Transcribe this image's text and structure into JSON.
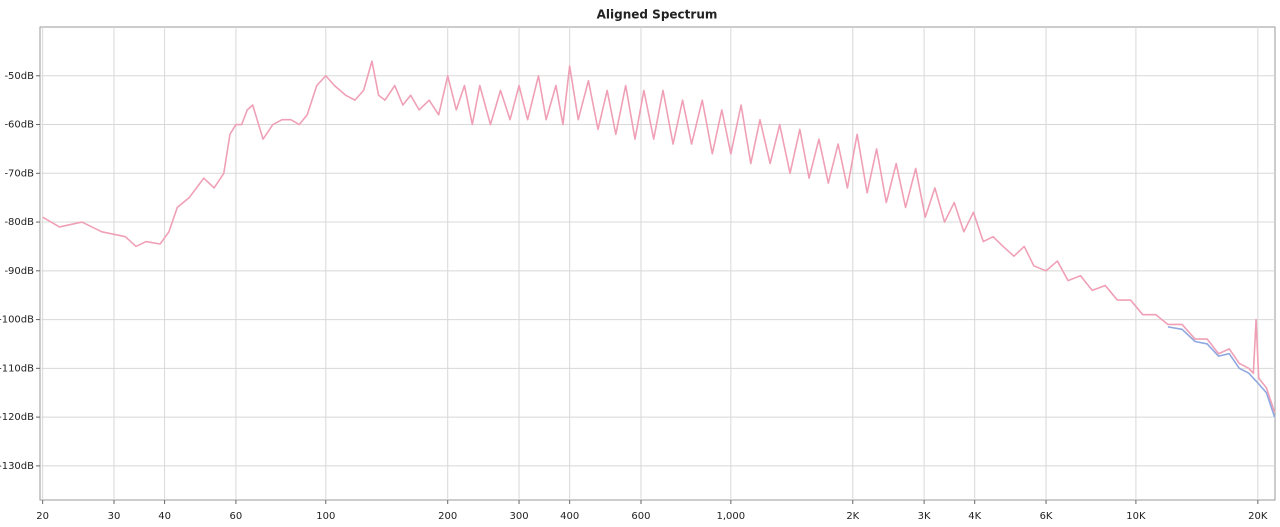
{
  "chart_data": {
    "type": "line",
    "title": "Aligned Spectrum",
    "xscale": "log",
    "grid": true,
    "xlim": [
      19.7,
      22050
    ],
    "ylim": [
      -137,
      -40
    ],
    "xticks": [
      20,
      30,
      40,
      60,
      100,
      200,
      300,
      400,
      600,
      {
        "value": 1000,
        "label": "1,000"
      },
      {
        "value": 2000,
        "label": "2K"
      },
      {
        "value": 3000,
        "label": "3K"
      },
      {
        "value": 4000,
        "label": "4K"
      },
      {
        "value": 6000,
        "label": "6K"
      },
      {
        "value": 10000,
        "label": "10K"
      },
      {
        "value": 20000,
        "label": "20K"
      }
    ],
    "yticks": [
      {
        "value": -50,
        "label": "-50dB"
      },
      {
        "value": -60,
        "label": "-60dB"
      },
      {
        "value": -70,
        "label": "-70dB"
      },
      {
        "value": -80,
        "label": "-80dB"
      },
      {
        "value": -90,
        "label": "-90dB"
      },
      {
        "value": -100,
        "label": "-100dB"
      },
      {
        "value": -110,
        "label": "-110dB"
      },
      {
        "value": -120,
        "label": "-120dB"
      },
      {
        "value": -130,
        "label": "-130dB"
      }
    ],
    "series": [
      {
        "color": "#8fa8df",
        "x": [
          12000,
          13000,
          14000,
          15000,
          16000,
          17000,
          18000,
          19000,
          20000,
          21000,
          22000
        ],
        "values": [
          -101.5,
          -102,
          -104.5,
          -105,
          -107.5,
          -107,
          -110,
          -111,
          -113,
          -115,
          -120
        ]
      },
      {
        "color": "#f0a0b6",
        "x": [
          20,
          22,
          25,
          28,
          32,
          34,
          36,
          39,
          41,
          43,
          46,
          50,
          53,
          56,
          58,
          60,
          62,
          64,
          66,
          70,
          74,
          78,
          82,
          86,
          90,
          95,
          100,
          105,
          112,
          118,
          124,
          130,
          135,
          140,
          148,
          155,
          162,
          170,
          180,
          190,
          200,
          210,
          220,
          230,
          240,
          255,
          270,
          285,
          300,
          315,
          335,
          350,
          370,
          385,
          400,
          420,
          445,
          470,
          495,
          520,
          550,
          580,
          610,
          645,
          680,
          720,
          760,
          800,
          850,
          900,
          950,
          1000,
          1060,
          1120,
          1180,
          1250,
          1320,
          1400,
          1480,
          1560,
          1650,
          1740,
          1840,
          1940,
          2050,
          2170,
          2290,
          2420,
          2560,
          2700,
          2860,
          3020,
          3190,
          3370,
          3560,
          3760,
          3970,
          4200,
          4440,
          4700,
          5000,
          5300,
          5600,
          6000,
          6400,
          6800,
          7300,
          7800,
          8400,
          9000,
          9700,
          10400,
          11200,
          12000,
          13000,
          14000,
          15000,
          16000,
          17000,
          18000,
          19000,
          19500,
          19800,
          20100,
          21000,
          22000
        ],
        "values": [
          -79,
          -81,
          -80,
          -82,
          -83,
          -85,
          -84,
          -84.5,
          -82,
          -77,
          -75,
          -71,
          -73,
          -70,
          -62,
          -60,
          -60,
          -57,
          -56,
          -63,
          -60,
          -59,
          -59,
          -60,
          -58,
          -52,
          -50,
          -52,
          -54,
          -55,
          -53,
          -47,
          -54,
          -55,
          -52,
          -56,
          -54,
          -57,
          -55,
          -58,
          -50,
          -57,
          -52,
          -60,
          -52,
          -60,
          -53,
          -59,
          -52,
          -59,
          -50,
          -59,
          -52,
          -60,
          -48,
          -59,
          -51,
          -61,
          -53,
          -62,
          -52,
          -63,
          -53,
          -63,
          -53,
          -64,
          -55,
          -64,
          -55,
          -66,
          -57,
          -66,
          -56,
          -68,
          -59,
          -68,
          -60,
          -70,
          -61,
          -71,
          -63,
          -72,
          -64,
          -73,
          -62,
          -74,
          -65,
          -76,
          -68,
          -77,
          -69,
          -79,
          -73,
          -80,
          -76,
          -82,
          -78,
          -84,
          -83,
          -85,
          -87,
          -85,
          -89,
          -90,
          -88,
          -92,
          -91,
          -94,
          -93,
          -96,
          -96,
          -99,
          -99,
          -101,
          -101,
          -104,
          -104,
          -107,
          -106,
          -109,
          -110,
          -111,
          -100,
          -112,
          -114,
          -119
        ]
      }
    ]
  }
}
